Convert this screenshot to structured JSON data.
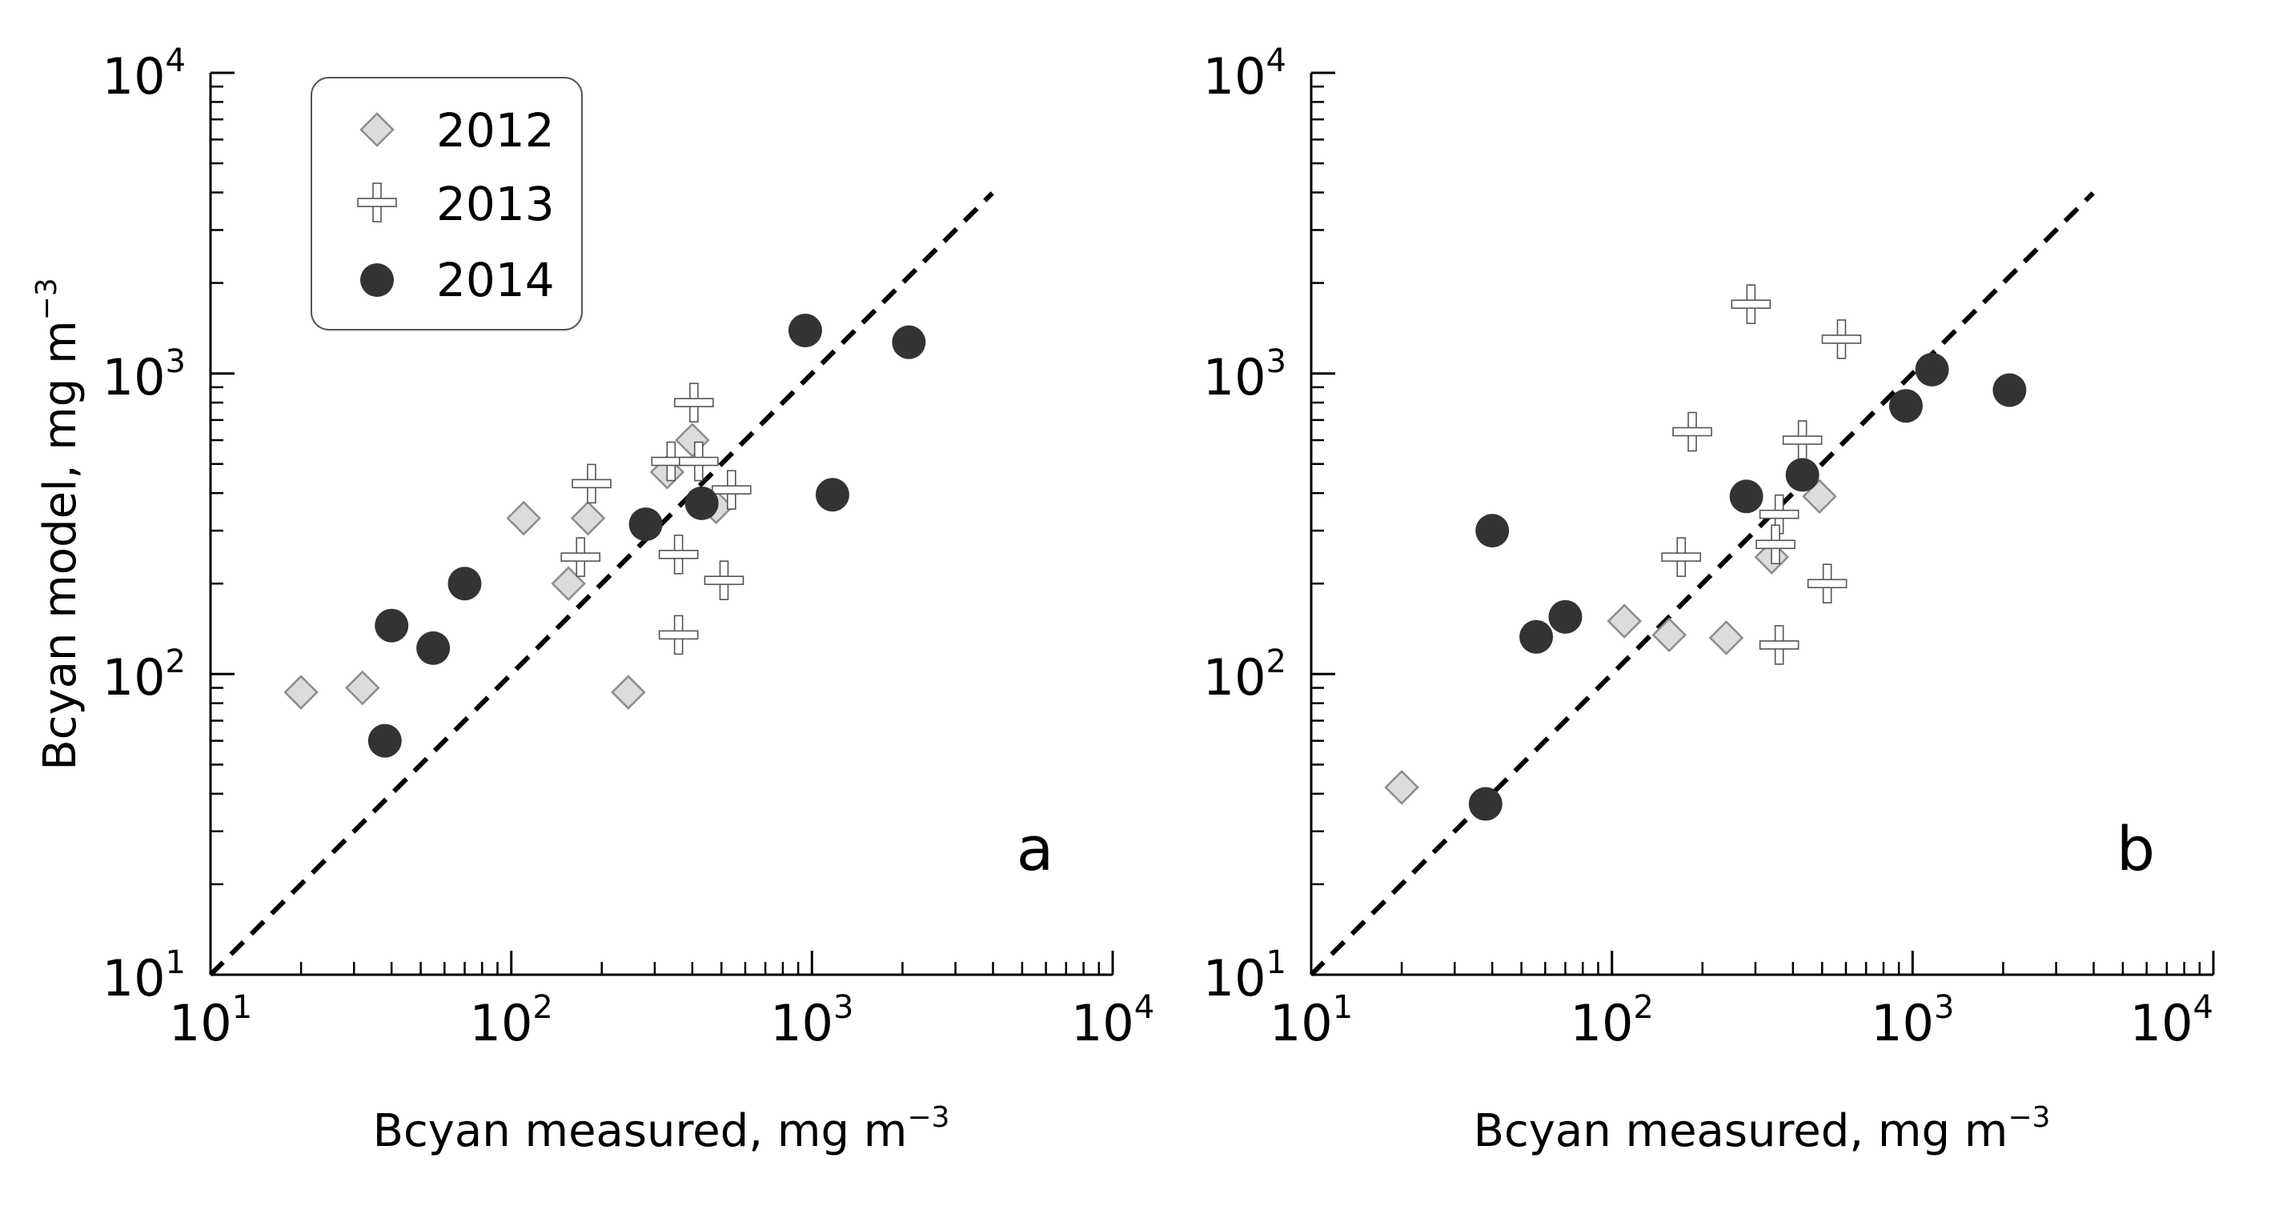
{
  "chart_data": [
    {
      "type": "scatter",
      "panel_label": "a",
      "xscale": "log",
      "yscale": "log",
      "xlim": [
        10,
        10000
      ],
      "ylim": [
        10,
        10000
      ],
      "xlabel": "Bcyan measured, mg m",
      "xlabel_sup": "−3",
      "ylabel": "Bcyan model, mg m",
      "ylabel_sup": "−3",
      "ticks": [
        {
          "base": "10",
          "exp": "1"
        },
        {
          "base": "10",
          "exp": "2"
        },
        {
          "base": "10",
          "exp": "3"
        },
        {
          "base": "10",
          "exp": "4"
        }
      ],
      "reference_line": {
        "style": "dashed",
        "x": [
          10,
          4000
        ],
        "y": [
          10,
          4000
        ]
      },
      "legend": {
        "placement": "top-left",
        "entries": [
          "2012",
          "2013",
          "2014"
        ]
      },
      "series": [
        {
          "name": "2012",
          "marker": "diamond",
          "color": "#dcdcdc",
          "points": [
            [
              20,
              87
            ],
            [
              32,
              90
            ],
            [
              110,
              330
            ],
            [
              180,
              330
            ],
            [
              155,
              200
            ],
            [
              245,
              87
            ],
            [
              330,
              470
            ],
            [
              400,
              600
            ],
            [
              480,
              360
            ]
          ]
        },
        {
          "name": "2013",
          "marker": "plus",
          "color": "#ffffff",
          "points": [
            [
              185,
              430
            ],
            [
              170,
              245
            ],
            [
              340,
              510
            ],
            [
              420,
              510
            ],
            [
              405,
              800
            ],
            [
              360,
              250
            ],
            [
              360,
              135
            ],
            [
              540,
              410
            ],
            [
              510,
              205
            ]
          ]
        },
        {
          "name": "2014",
          "marker": "circle",
          "color": "#333333",
          "points": [
            [
              38,
              60
            ],
            [
              40,
              145
            ],
            [
              55,
              122
            ],
            [
              70,
              200
            ],
            [
              280,
              315
            ],
            [
              430,
              370
            ],
            [
              950,
              1390
            ],
            [
              2100,
              1270
            ],
            [
              1170,
              395
            ]
          ]
        }
      ]
    },
    {
      "type": "scatter",
      "panel_label": "b",
      "xscale": "log",
      "yscale": "log",
      "xlim": [
        10,
        10000
      ],
      "ylim": [
        10,
        10000
      ],
      "xlabel": "Bcyan measured, mg m",
      "xlabel_sup": "−3",
      "ylabel": "",
      "ylabel_sup": "",
      "ticks": [
        {
          "base": "10",
          "exp": "1"
        },
        {
          "base": "10",
          "exp": "2"
        },
        {
          "base": "10",
          "exp": "3"
        },
        {
          "base": "10",
          "exp": "4"
        }
      ],
      "reference_line": {
        "style": "dashed",
        "x": [
          10,
          4000
        ],
        "y": [
          10,
          4000
        ]
      },
      "legend": null,
      "series": [
        {
          "name": "2012",
          "marker": "diamond",
          "color": "#dcdcdc",
          "points": [
            [
              20,
              42
            ],
            [
              110,
              150
            ],
            [
              155,
              135
            ],
            [
              240,
              132
            ],
            [
              340,
              245
            ],
            [
              490,
              390
            ]
          ]
        },
        {
          "name": "2013",
          "marker": "plus",
          "color": "#ffffff",
          "points": [
            [
              290,
              1700
            ],
            [
              580,
              1300
            ],
            [
              185,
              640
            ],
            [
              170,
              245
            ],
            [
              360,
              340
            ],
            [
              350,
              270
            ],
            [
              430,
              600
            ],
            [
              520,
              200
            ],
            [
              360,
              125
            ]
          ]
        },
        {
          "name": "2014",
          "marker": "circle",
          "color": "#333333",
          "points": [
            [
              38,
              37
            ],
            [
              40,
              300
            ],
            [
              56,
              133
            ],
            [
              70,
              155
            ],
            [
              280,
              390
            ],
            [
              430,
              460
            ],
            [
              950,
              780
            ],
            [
              1160,
              1030
            ],
            [
              2100,
              880
            ]
          ]
        }
      ]
    }
  ]
}
